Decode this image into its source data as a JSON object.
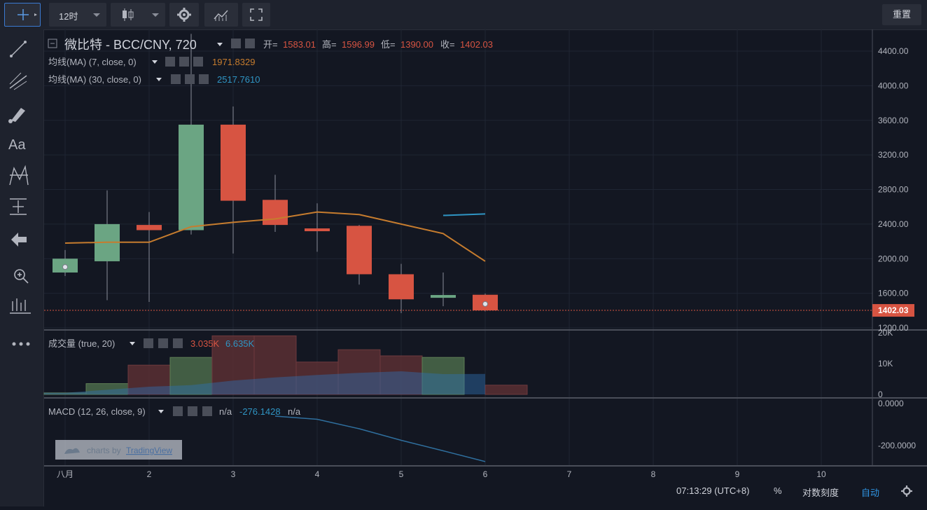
{
  "toolbar": {
    "interval": "12时",
    "reset_label": "重置"
  },
  "legend": {
    "main": {
      "title": "微比特 - BCC/CNY, 720",
      "open_label": "开=",
      "open": "1583.01",
      "high_label": "高=",
      "high": "1596.99",
      "low_label": "低=",
      "low": "1390.00",
      "close_label": "收=",
      "close": "1402.03"
    },
    "ma7": {
      "label": "均线(MA) (7, close, 0)",
      "value": "1971.8329"
    },
    "ma30": {
      "label": "均线(MA) (30, close, 0)",
      "value": "2517.7610"
    },
    "volume": {
      "label": "成交量 (true, 20)",
      "value1": "3.035K",
      "value2": "6.635K"
    },
    "macd": {
      "label": "MACD (12, 26, close, 9)",
      "value1": "n/a",
      "value2": "-276.1428",
      "value3": "n/a"
    }
  },
  "price_badge": "1402.03",
  "watermark": {
    "prefix": "charts by",
    "brand": "TradingView"
  },
  "status": {
    "time": "07:13:29 (UTC+8)",
    "percent": "%",
    "log": "对数刻度",
    "auto": "自动"
  },
  "colors": {
    "up": "#6ba583",
    "down": "#d75442",
    "ma7": "#c67c2e",
    "ma30": "#2f95c4",
    "macd": "#2f6f9e",
    "last_line": "#d75442"
  },
  "chart_data": {
    "type": "candlestick",
    "x_ticks": [
      "八月",
      "2",
      "3",
      "4",
      "5",
      "6",
      "7",
      "8",
      "9",
      "10"
    ],
    "candles": [
      {
        "x": 1.0,
        "open": 1840,
        "close": 2000,
        "high": 2100,
        "low": 1800
      },
      {
        "x": 1.5,
        "open": 1970,
        "close": 2400,
        "high": 2790,
        "low": 1520
      },
      {
        "x": 2.0,
        "open": 2390,
        "close": 2330,
        "high": 2540,
        "low": 1500
      },
      {
        "x": 2.5,
        "open": 2330,
        "close": 3550,
        "high": 4600,
        "low": 2280
      },
      {
        "x": 3.0,
        "open": 3550,
        "close": 2670,
        "high": 3760,
        "low": 2060
      },
      {
        "x": 3.5,
        "open": 2680,
        "close": 2390,
        "high": 2970,
        "low": 2310
      },
      {
        "x": 4.0,
        "open": 2350,
        "close": 2330,
        "high": 2640,
        "low": 2080
      },
      {
        "x": 4.5,
        "open": 2380,
        "close": 1820,
        "high": 2390,
        "low": 1700
      },
      {
        "x": 5.0,
        "open": 1820,
        "close": 1530,
        "high": 1940,
        "low": 1370
      },
      {
        "x": 5.5,
        "open": 1550,
        "close": 1580,
        "high": 1840,
        "low": 1450
      },
      {
        "x": 6.0,
        "open": 1583.01,
        "close": 1402.03,
        "high": 1596.99,
        "low": 1390.0
      }
    ],
    "ma7": {
      "name": "均线(MA) (7, close, 0)",
      "x": [
        1.0,
        1.5,
        2.0,
        2.5,
        3.0,
        3.5,
        4.0,
        4.5,
        5.0,
        5.5,
        6.0
      ],
      "y": [
        2180,
        2190,
        2190,
        2370,
        2420,
        2460,
        2540,
        2510,
        2400,
        2290,
        1970
      ]
    },
    "ma30": {
      "name": "均线(MA) (30, close, 0)",
      "x": [
        5.5,
        6.0
      ],
      "y": [
        2500,
        2517.761
      ]
    },
    "last_price": 1402.03,
    "price_ylim": [
      1200,
      4600
    ],
    "price_ticks": [
      4400,
      4000,
      3600,
      3200,
      2800,
      2400,
      2000,
      1600,
      1200
    ],
    "volume": {
      "x": [
        1.0,
        1.5,
        2.0,
        2.5,
        3.0,
        3.5,
        4.0,
        4.5,
        5.0,
        5.5,
        6.0
      ],
      "values": [
        0.5,
        3.5,
        9.5,
        12,
        19,
        19,
        10.5,
        14.5,
        12.5,
        12,
        3.0
      ],
      "direction": [
        "up",
        "up",
        "down",
        "up",
        "down",
        "down",
        "down",
        "down",
        "down",
        "up",
        "down"
      ],
      "ma": [
        0.5,
        1.5,
        2.5,
        3.0,
        4.5,
        5.5,
        6.3,
        7.0,
        7.5,
        6.6,
        6.635
      ],
      "ticks": [
        "20K",
        "10K",
        "0"
      ],
      "ylim": [
        0,
        20
      ]
    },
    "macd": {
      "x": [
        3.5,
        4.0,
        4.5,
        5.0,
        5.5,
        6.0
      ],
      "y": [
        -60,
        -75,
        -120,
        -175,
        -225,
        -276.1428
      ],
      "ticks": [
        "0.0000",
        "-200.0000"
      ],
      "ylim": [
        -300,
        0
      ]
    }
  }
}
